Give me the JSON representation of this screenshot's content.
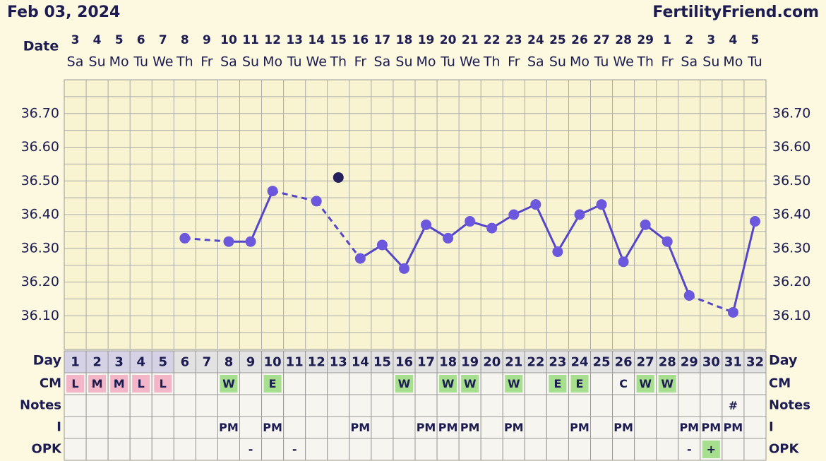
{
  "header": {
    "date": "Feb 03, 2024",
    "site": "FertilityFriend.com"
  },
  "chart_data": {
    "type": "line",
    "date_label": "Date",
    "dates": [
      3,
      4,
      5,
      6,
      7,
      8,
      9,
      10,
      11,
      12,
      13,
      14,
      15,
      16,
      17,
      18,
      19,
      20,
      21,
      22,
      23,
      24,
      25,
      26,
      27,
      28,
      29,
      1,
      2,
      3,
      4,
      5
    ],
    "weekdays": [
      "Sa",
      "Su",
      "Mo",
      "Tu",
      "We",
      "Th",
      "Fr",
      "Sa",
      "Su",
      "Mo",
      "Tu",
      "We",
      "Th",
      "Fr",
      "Sa",
      "Su",
      "Mo",
      "Tu",
      "We",
      "Th",
      "Fr",
      "Sa",
      "Su",
      "Mo",
      "Tu",
      "We",
      "Th",
      "Fr",
      "Sa",
      "Su",
      "Mo",
      "Tu"
    ],
    "categories": [
      1,
      2,
      3,
      4,
      5,
      6,
      7,
      8,
      9,
      10,
      11,
      12,
      13,
      14,
      15,
      16,
      17,
      18,
      19,
      20,
      21,
      22,
      23,
      24,
      25,
      26,
      27,
      28,
      29,
      30,
      31,
      32
    ],
    "series": [
      {
        "color": "#5546c8",
        "connect": true,
        "values": [
          null,
          null,
          null,
          null,
          null,
          36.33,
          null,
          36.32,
          36.32,
          36.47,
          null,
          36.44,
          null,
          36.27,
          36.31,
          36.24,
          36.37,
          36.33,
          36.38,
          36.36,
          36.4,
          36.43,
          36.29,
          36.4,
          36.43,
          36.26,
          36.37,
          36.32,
          36.16,
          null,
          36.11,
          36.38
        ]
      },
      {
        "color": "#24215c",
        "connect": false,
        "values": [
          null,
          null,
          null,
          null,
          null,
          null,
          null,
          null,
          null,
          null,
          null,
          null,
          36.51,
          null,
          null,
          null,
          null,
          null,
          null,
          null,
          null,
          null,
          null,
          null,
          null,
          null,
          null,
          null,
          null,
          null,
          null,
          null
        ]
      }
    ],
    "ylim": [
      36.0,
      36.8
    ],
    "yticks": [
      {
        "value": 36.1,
        "label": "36.10"
      },
      {
        "value": 36.2,
        "label": "36.20"
      },
      {
        "value": 36.3,
        "label": "36.30"
      },
      {
        "value": 36.4,
        "label": "36.40"
      },
      {
        "value": 36.5,
        "label": "36.50"
      },
      {
        "value": 36.6,
        "label": "36.60"
      },
      {
        "value": 36.7,
        "label": "36.70"
      }
    ],
    "grid": true,
    "day_label": "Day",
    "rows": [
      {
        "label": "CM",
        "values": [
          "L",
          "M",
          "M",
          "L",
          "L",
          null,
          null,
          "W",
          null,
          "E",
          null,
          null,
          null,
          null,
          null,
          "W",
          null,
          "W",
          "W",
          null,
          "W",
          null,
          "E",
          "E",
          null,
          "C",
          "W",
          "W",
          null,
          null,
          null,
          null
        ],
        "colors": [
          "#f2b6c8",
          "#f2b6c8",
          "#f2b6c8",
          "#f2b6c8",
          "#f2b6c8",
          null,
          null,
          "#a6e08e",
          null,
          "#a6e08e",
          null,
          null,
          null,
          null,
          null,
          "#a6e08e",
          null,
          "#a6e08e",
          "#a6e08e",
          null,
          "#a6e08e",
          null,
          "#a6e08e",
          "#a6e08e",
          null,
          null,
          "#a6e08e",
          "#a6e08e",
          null,
          null,
          null,
          null
        ]
      },
      {
        "label": "Notes",
        "values": [
          null,
          null,
          null,
          null,
          null,
          null,
          null,
          null,
          null,
          null,
          null,
          null,
          null,
          null,
          null,
          null,
          null,
          null,
          null,
          null,
          null,
          null,
          null,
          null,
          null,
          null,
          null,
          null,
          null,
          null,
          "#",
          null
        ]
      },
      {
        "label": "I",
        "values": [
          null,
          null,
          null,
          null,
          null,
          null,
          null,
          "PM",
          null,
          "PM",
          null,
          null,
          null,
          "PM",
          null,
          null,
          "PM",
          "PM",
          "PM",
          null,
          "PM",
          null,
          null,
          "PM",
          null,
          "PM",
          null,
          null,
          "PM",
          "PM",
          "PM",
          null
        ]
      },
      {
        "label": "OPK",
        "values": [
          null,
          null,
          null,
          null,
          null,
          null,
          null,
          null,
          "-",
          null,
          "-",
          null,
          null,
          null,
          null,
          null,
          null,
          null,
          null,
          null,
          null,
          null,
          null,
          null,
          null,
          null,
          null,
          null,
          "-",
          "+",
          null,
          null
        ],
        "colors": [
          null,
          null,
          null,
          null,
          null,
          null,
          null,
          null,
          null,
          null,
          null,
          null,
          null,
          null,
          null,
          null,
          null,
          null,
          null,
          null,
          null,
          null,
          null,
          null,
          null,
          null,
          null,
          null,
          null,
          "#a6e08e",
          null,
          null
        ]
      }
    ]
  }
}
